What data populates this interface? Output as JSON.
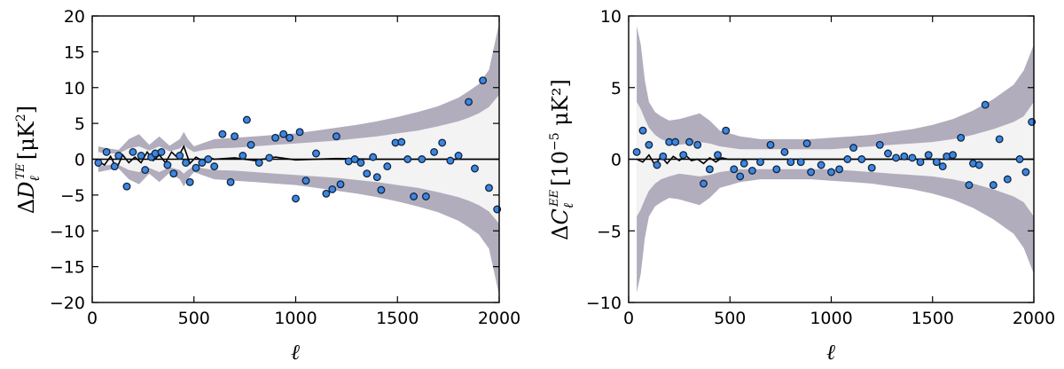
{
  "figure_labels": {
    "left_ylabel": "ΔD_ℓ^TE [μK²]",
    "right_ylabel": "ΔC_ℓ^EE [10⁻⁵ μK²]"
  },
  "chart_data": [
    {
      "id": "te",
      "type": "scatter",
      "title": "",
      "xlabel": "ℓ",
      "ylabel_parts": {
        "delta": "Δ",
        "symbol": "D",
        "sub": "ℓ",
        "sup": "TE",
        "unit": "[μK",
        "unit_sup": "2",
        "unit_end": "]"
      },
      "xlim": [
        0,
        2000
      ],
      "ylim": [
        -20,
        20
      ],
      "xticks": [
        0,
        500,
        1000,
        1500,
        2000
      ],
      "yticks": [
        -20,
        -15,
        -10,
        -5,
        0,
        5,
        10,
        15,
        20
      ],
      "series": [
        {
          "name": "residual points",
          "x": [
            30,
            70,
            110,
            130,
            170,
            200,
            240,
            260,
            290,
            310,
            340,
            370,
            400,
            430,
            460,
            480,
            510,
            540,
            570,
            600,
            640,
            680,
            700,
            740,
            760,
            780,
            820,
            870,
            900,
            940,
            970,
            1000,
            1020,
            1050,
            1100,
            1150,
            1180,
            1200,
            1220,
            1260,
            1290,
            1320,
            1350,
            1380,
            1400,
            1420,
            1450,
            1490,
            1520,
            1550,
            1580,
            1620,
            1640,
            1680,
            1720,
            1760,
            1800,
            1850,
            1880,
            1920,
            1950,
            1990
          ],
          "y": [
            -0.5,
            1,
            -1,
            0.5,
            -3.8,
            1,
            0.5,
            -1.5,
            0.3,
            0.8,
            1,
            -0.8,
            -2,
            0.5,
            -0.5,
            -3.2,
            -1.2,
            -0.5,
            0,
            -1,
            3.5,
            -3.2,
            3.2,
            0.5,
            5.5,
            2,
            -0.5,
            0.2,
            3,
            3.5,
            3,
            -5.5,
            3.8,
            -3,
            0.8,
            -4.8,
            -4.2,
            3.2,
            -3.5,
            -0.3,
            0,
            -0.5,
            -2,
            0.3,
            -2.5,
            -4.3,
            -1,
            2.3,
            2.4,
            0,
            -5.2,
            0,
            -5.2,
            1,
            2.3,
            -0.2,
            0.5,
            8,
            -1.3,
            11,
            -4,
            -7
          ]
        },
        {
          "name": "mean residual",
          "x": [
            30,
            60,
            90,
            120,
            150,
            180,
            210,
            240,
            270,
            300,
            330,
            360,
            390,
            420,
            450,
            480,
            510,
            540,
            570,
            600,
            700,
            800,
            900,
            1000,
            1200,
            1400,
            1600,
            1800,
            2000
          ],
          "y": [
            -0.3,
            -0.8,
            0.4,
            -1.3,
            0.6,
            -0.5,
            0.3,
            -0.5,
            1,
            -0.2,
            0.6,
            -0.5,
            1,
            0.2,
            1.8,
            -0.6,
            0.3,
            -0.2,
            0.3,
            0,
            0.2,
            -0.2,
            0.3,
            -0.1,
            0.1,
            0,
            0,
            0,
            0
          ]
        }
      ],
      "bands": {
        "x": [
          30,
          80,
          130,
          180,
          230,
          280,
          330,
          380,
          430,
          450,
          470,
          500,
          550,
          600,
          700,
          800,
          900,
          1000,
          1100,
          1200,
          1300,
          1400,
          1500,
          1600,
          1700,
          1800,
          1850,
          1900,
          1950,
          2000
        ],
        "outer": [
          1.8,
          1.5,
          1.3,
          2.8,
          3.5,
          2.0,
          3.2,
          1.9,
          2.8,
          3.8,
          2.8,
          1.8,
          2.3,
          2.8,
          3.0,
          3.2,
          3.4,
          3.6,
          4.0,
          4.4,
          4.8,
          5.3,
          5.9,
          6.6,
          7.4,
          8.6,
          9.5,
          10.5,
          12.5,
          19
        ],
        "inner": [
          1.0,
          0.8,
          0.8,
          1.5,
          1.8,
          1.2,
          1.8,
          1.1,
          1.5,
          2.0,
          1.5,
          1.0,
          1.3,
          1.5,
          1.6,
          1.8,
          2.0,
          2.2,
          2.4,
          2.6,
          2.9,
          3.2,
          3.6,
          4.0,
          4.6,
          5.3,
          5.8,
          6.4,
          7.3,
          9
        ]
      }
    },
    {
      "id": "ee",
      "type": "scatter",
      "title": "",
      "xlabel": "ℓ",
      "ylabel_parts": {
        "delta": "Δ",
        "symbol": "C",
        "sub": "ℓ",
        "sup": "EE",
        "unit": "[10",
        "unit_sup": "−5",
        "unit_end": " μK²]"
      },
      "xlim": [
        0,
        2000
      ],
      "ylim": [
        -10,
        10
      ],
      "xticks": [
        0,
        500,
        1000,
        1500,
        2000
      ],
      "yticks": [
        -10,
        -5,
        0,
        5,
        10
      ],
      "series": [
        {
          "name": "residual points",
          "x": [
            40,
            70,
            100,
            140,
            170,
            200,
            230,
            270,
            300,
            340,
            370,
            400,
            440,
            480,
            520,
            550,
            570,
            610,
            650,
            700,
            730,
            770,
            800,
            850,
            880,
            900,
            950,
            1000,
            1040,
            1080,
            1110,
            1150,
            1200,
            1240,
            1280,
            1320,
            1360,
            1400,
            1440,
            1480,
            1520,
            1550,
            1570,
            1600,
            1640,
            1680,
            1700,
            1730,
            1760,
            1800,
            1830,
            1870,
            1930,
            1960,
            1990
          ],
          "y": [
            0.5,
            2,
            1,
            -0.4,
            0.2,
            1.2,
            1.2,
            0.3,
            1.2,
            1,
            -1.7,
            -0.7,
            0.3,
            2,
            -0.7,
            -1.2,
            -0.3,
            -0.8,
            -0.2,
            1,
            -0.7,
            0.5,
            -0.2,
            -0.2,
            1.1,
            -0.9,
            -0.4,
            -0.9,
            -0.7,
            0,
            0.8,
            0,
            -0.6,
            1,
            0.4,
            0.1,
            0.2,
            0.1,
            -0.2,
            0.3,
            -0.2,
            -0.5,
            0.2,
            0.3,
            1.5,
            -1.8,
            -0.3,
            -0.4,
            3.8,
            -1.8,
            1.4,
            -1.4,
            0,
            -0.9,
            2.6
          ]
        },
        {
          "name": "mean residual",
          "x": [
            40,
            70,
            100,
            130,
            160,
            190,
            220,
            250,
            280,
            310,
            340,
            370,
            400,
            430,
            460,
            490,
            520,
            600,
            800,
            1000,
            1200,
            1400,
            1600,
            1800,
            2000
          ],
          "y": [
            0,
            -0.2,
            0.3,
            -0.4,
            0.2,
            -0.3,
            0.2,
            -0.1,
            0.3,
            -0.1,
            0,
            -0.3,
            0.1,
            -0.2,
            0.1,
            0,
            0,
            0,
            0,
            0,
            0,
            0,
            0,
            0,
            0
          ]
        }
      ],
      "bands": {
        "x": [
          40,
          60,
          80,
          100,
          130,
          160,
          200,
          250,
          300,
          350,
          400,
          450,
          500,
          550,
          600,
          650,
          700,
          800,
          900,
          1000,
          1100,
          1200,
          1300,
          1400,
          1500,
          1600,
          1700,
          1800,
          1900,
          1950,
          2000
        ],
        "outer": [
          9.3,
          8.0,
          5.5,
          4.0,
          3.3,
          3.0,
          2.7,
          2.8,
          3.0,
          3.2,
          2.7,
          2.0,
          1.8,
          1.6,
          1.5,
          1.4,
          1.4,
          1.4,
          1.4,
          1.5,
          1.6,
          1.7,
          1.9,
          2.1,
          2.4,
          2.8,
          3.4,
          4.2,
          5.2,
          6.2,
          8.0
        ],
        "inner": [
          4.0,
          3.5,
          2.8,
          2.2,
          1.7,
          1.4,
          1.2,
          1.0,
          1.1,
          1.2,
          1.1,
          0.9,
          0.8,
          0.7,
          0.7,
          0.7,
          0.7,
          0.7,
          0.7,
          0.7,
          0.8,
          0.9,
          1.0,
          1.1,
          1.2,
          1.4,
          1.7,
          2.1,
          2.6,
          3.0,
          4.0
        ]
      }
    }
  ]
}
